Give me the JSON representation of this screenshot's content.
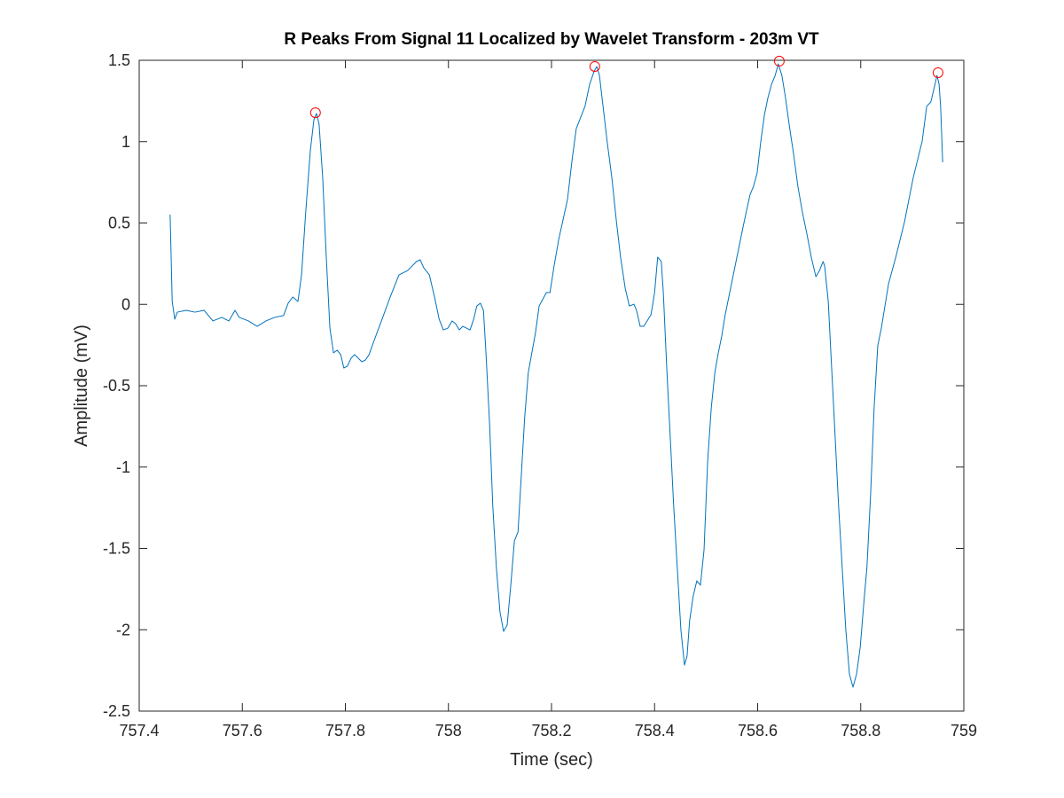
{
  "chart_data": {
    "type": "line",
    "title": "R Peaks From Signal 11 Localized by Wavelet Transform - 203m VT",
    "x_label": "Time (sec)",
    "y_label": "Amplitude (mV)",
    "xlim": [
      757.4,
      759
    ],
    "xticks": [
      757.4,
      757.6,
      757.8,
      758,
      758.2,
      758.4,
      758.6,
      758.8,
      759
    ],
    "ylim": [
      -2.5,
      1.5
    ],
    "yticks": [
      -2.5,
      -2,
      -1.5,
      -1,
      -0.5,
      0,
      0.5,
      1,
      1.5
    ],
    "grid": false,
    "box": true,
    "series": [
      {
        "color": "#0072bd",
        "style": "line",
        "x": [
          757.46,
          757.464,
          757.469,
          757.474,
          757.491,
          757.508,
          757.526,
          757.543,
          757.56,
          757.574,
          757.586,
          757.594,
          757.612,
          757.629,
          757.646,
          757.663,
          757.68,
          757.689,
          757.698,
          757.708,
          757.715,
          757.723,
          757.732,
          757.739,
          757.744,
          757.749,
          757.756,
          757.763,
          757.77,
          757.777,
          757.784,
          757.791,
          757.797,
          757.804,
          757.811,
          757.818,
          757.825,
          757.832,
          757.839,
          757.846,
          757.852,
          757.87,
          757.887,
          757.904,
          757.921,
          757.938,
          757.945,
          757.952,
          757.963,
          757.973,
          757.982,
          757.99,
          757.999,
          758.007,
          758.014,
          758.021,
          758.028,
          758.042,
          758.049,
          758.055,
          758.062,
          758.068,
          758.073,
          758.08,
          758.086,
          758.093,
          758.1,
          758.107,
          758.114,
          758.121,
          758.128,
          758.135,
          758.142,
          758.148,
          758.155,
          758.169,
          758.176,
          758.19,
          758.197,
          758.205,
          758.214,
          758.231,
          758.24,
          758.248,
          758.265,
          758.274,
          758.283,
          758.288,
          758.293,
          758.3,
          758.308,
          758.317,
          758.326,
          758.334,
          758.343,
          758.351,
          758.36,
          758.365,
          758.372,
          758.379,
          758.393,
          758.4,
          758.406,
          758.413,
          758.417,
          758.424,
          758.431,
          758.437,
          758.444,
          758.451,
          758.458,
          758.463,
          758.468,
          758.475,
          758.482,
          758.489,
          758.496,
          758.503,
          758.51,
          758.517,
          758.523,
          758.53,
          758.537,
          758.544,
          758.558,
          758.572,
          758.585,
          758.592,
          758.599,
          758.606,
          758.613,
          758.62,
          758.627,
          758.634,
          758.64,
          758.647,
          758.654,
          758.661,
          758.67,
          758.678,
          758.687,
          758.696,
          758.704,
          758.713,
          758.72,
          758.727,
          758.73,
          758.737,
          758.744,
          758.751,
          758.757,
          758.764,
          758.771,
          758.778,
          758.785,
          758.792,
          758.799,
          758.806,
          758.812,
          758.819,
          758.826,
          758.833,
          758.84,
          758.854,
          758.868,
          758.885,
          758.902,
          758.919,
          758.928,
          758.936,
          758.943,
          758.948,
          758.952,
          758.955,
          758.959
        ],
        "values": [
          0.552,
          0.018,
          -0.091,
          -0.048,
          -0.037,
          -0.048,
          -0.037,
          -0.102,
          -0.08,
          -0.102,
          -0.037,
          -0.08,
          -0.102,
          -0.135,
          -0.102,
          -0.08,
          -0.069,
          0.007,
          0.045,
          0.018,
          0.181,
          0.563,
          0.944,
          1.135,
          1.173,
          1.108,
          0.781,
          0.29,
          -0.146,
          -0.298,
          -0.282,
          -0.309,
          -0.391,
          -0.38,
          -0.331,
          -0.309,
          -0.331,
          -0.353,
          -0.342,
          -0.309,
          -0.255,
          -0.102,
          0.045,
          0.181,
          0.208,
          0.263,
          0.274,
          0.225,
          0.181,
          0.045,
          -0.091,
          -0.157,
          -0.146,
          -0.102,
          -0.119,
          -0.157,
          -0.135,
          -0.157,
          -0.091,
          -0.01,
          0.007,
          -0.037,
          -0.309,
          -0.745,
          -1.236,
          -1.617,
          -1.89,
          -2.01,
          -1.971,
          -1.726,
          -1.454,
          -1.399,
          -1.018,
          -0.691,
          -0.418,
          -0.173,
          -0.01,
          0.072,
          0.072,
          0.236,
          0.399,
          0.644,
          0.89,
          1.08,
          1.217,
          1.353,
          1.435,
          1.462,
          1.407,
          1.217,
          0.999,
          0.781,
          0.508,
          0.29,
          0.099,
          -0.01,
          0.001,
          -0.037,
          -0.135,
          -0.135,
          -0.064,
          0.072,
          0.29,
          0.263,
          0.072,
          -0.418,
          -0.854,
          -1.236,
          -1.617,
          -1.998,
          -2.217,
          -2.162,
          -1.944,
          -1.792,
          -1.699,
          -1.726,
          -1.508,
          -0.963,
          -0.636,
          -0.418,
          -0.309,
          -0.2,
          -0.064,
          0.045,
          0.263,
          0.481,
          0.672,
          0.726,
          0.808,
          0.999,
          1.162,
          1.271,
          1.353,
          1.407,
          1.478,
          1.407,
          1.271,
          1.108,
          0.917,
          0.726,
          0.563,
          0.426,
          0.29,
          0.17,
          0.208,
          0.263,
          0.236,
          0.018,
          -0.418,
          -0.854,
          -1.236,
          -1.617,
          -1.998,
          -2.271,
          -2.353,
          -2.271,
          -2.108,
          -1.835,
          -1.617,
          -1.181,
          -0.636,
          -0.255,
          -0.146,
          0.127,
          0.29,
          0.508,
          0.781,
          0.999,
          1.217,
          1.244,
          1.337,
          1.407,
          1.353,
          1.217,
          0.873
        ]
      },
      {
        "color": "#ff0000",
        "style": "circle",
        "x": [
          757.742,
          758.284,
          758.642,
          758.95
        ],
        "values": [
          1.178,
          1.462,
          1.495,
          1.424
        ]
      }
    ]
  }
}
